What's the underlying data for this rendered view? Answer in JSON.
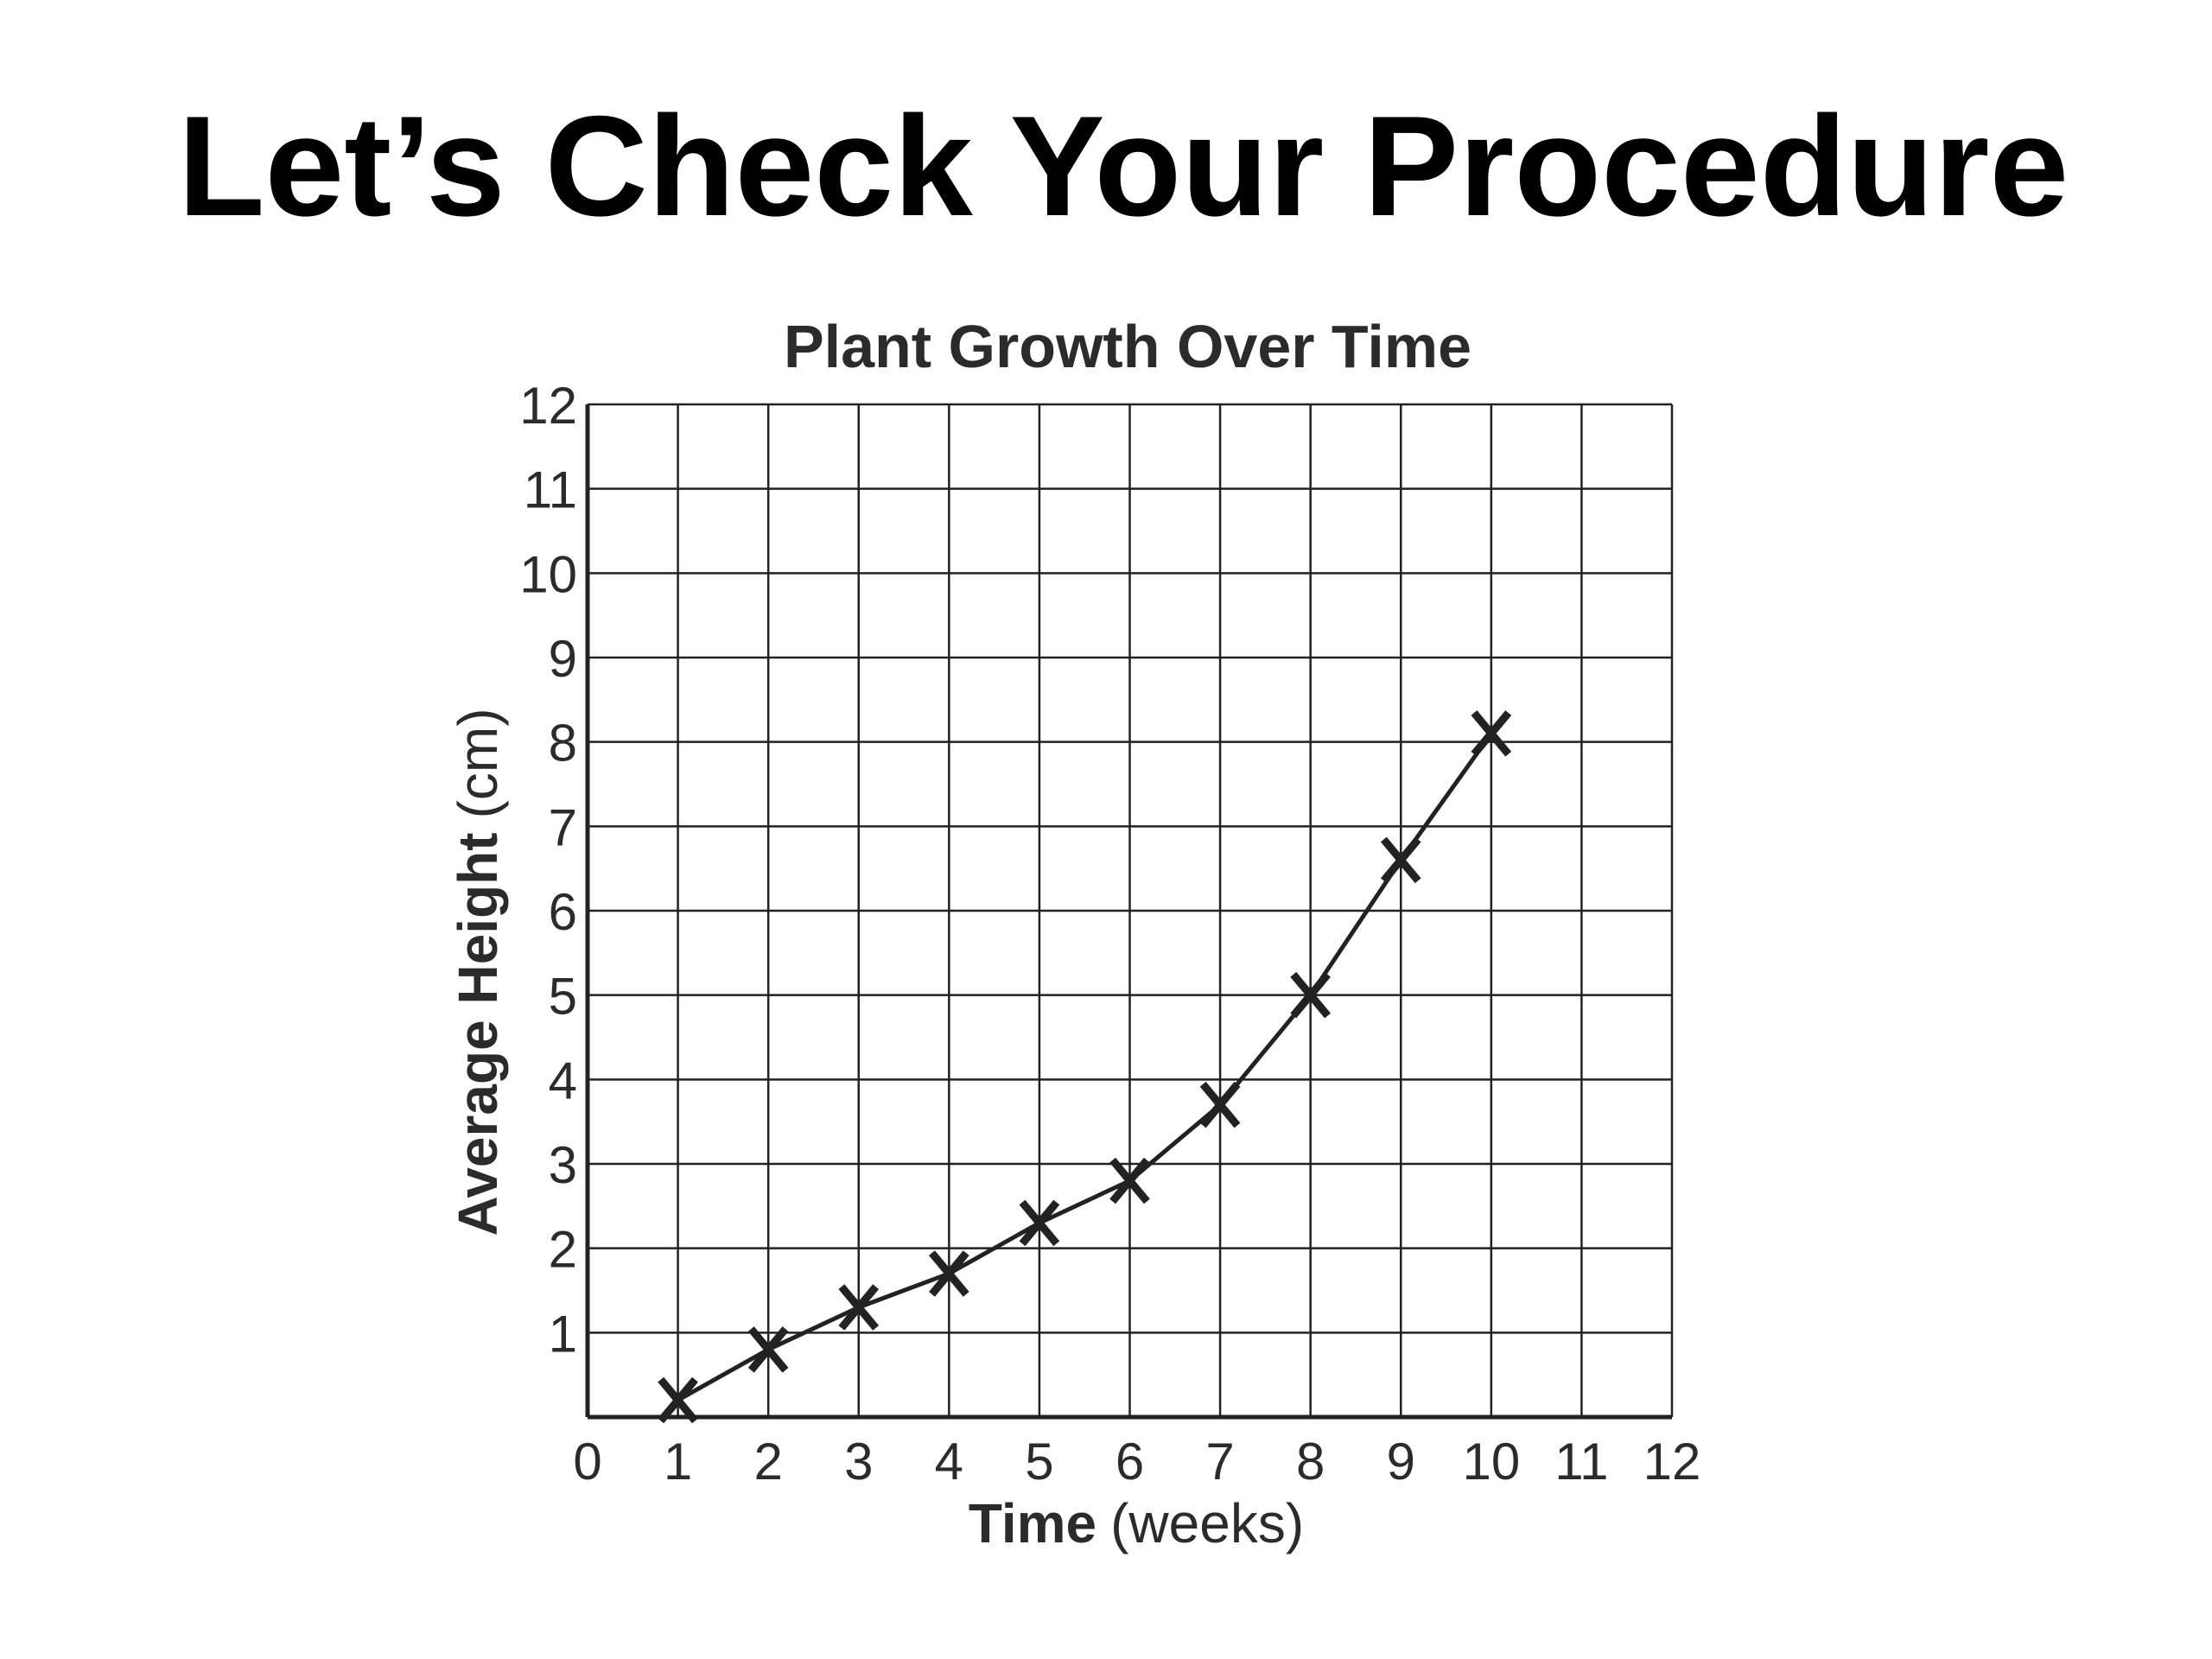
{
  "slide": {
    "title": "Let’s Check Your Procedure"
  },
  "chart_data": {
    "type": "line",
    "title": "Plant Growth Over Time",
    "xlabel_main": "Time",
    "xlabel_unit": "(weeks)",
    "ylabel_main": "Average Height",
    "ylabel_unit": "(cm)",
    "xlim": [
      0,
      12
    ],
    "ylim": [
      0,
      12
    ],
    "x_ticks": [
      "0",
      "1",
      "2",
      "3",
      "4",
      "5",
      "6",
      "7",
      "8",
      "9",
      "10",
      "11",
      "12"
    ],
    "y_ticks": [
      "1",
      "2",
      "3",
      "4",
      "5",
      "6",
      "7",
      "8",
      "9",
      "10",
      "11",
      "12"
    ],
    "grid": true,
    "marker": "X",
    "series": [
      {
        "x": [
          1,
          2,
          3,
          4,
          5,
          6,
          7,
          8,
          9,
          10
        ],
        "values": [
          0.2,
          0.8,
          1.3,
          1.7,
          2.3,
          2.8,
          3.7,
          5.0,
          6.6,
          8.1
        ]
      }
    ],
    "colors": {
      "line": "#222222",
      "grid": "#222222",
      "text": "#2b2b2b"
    }
  }
}
